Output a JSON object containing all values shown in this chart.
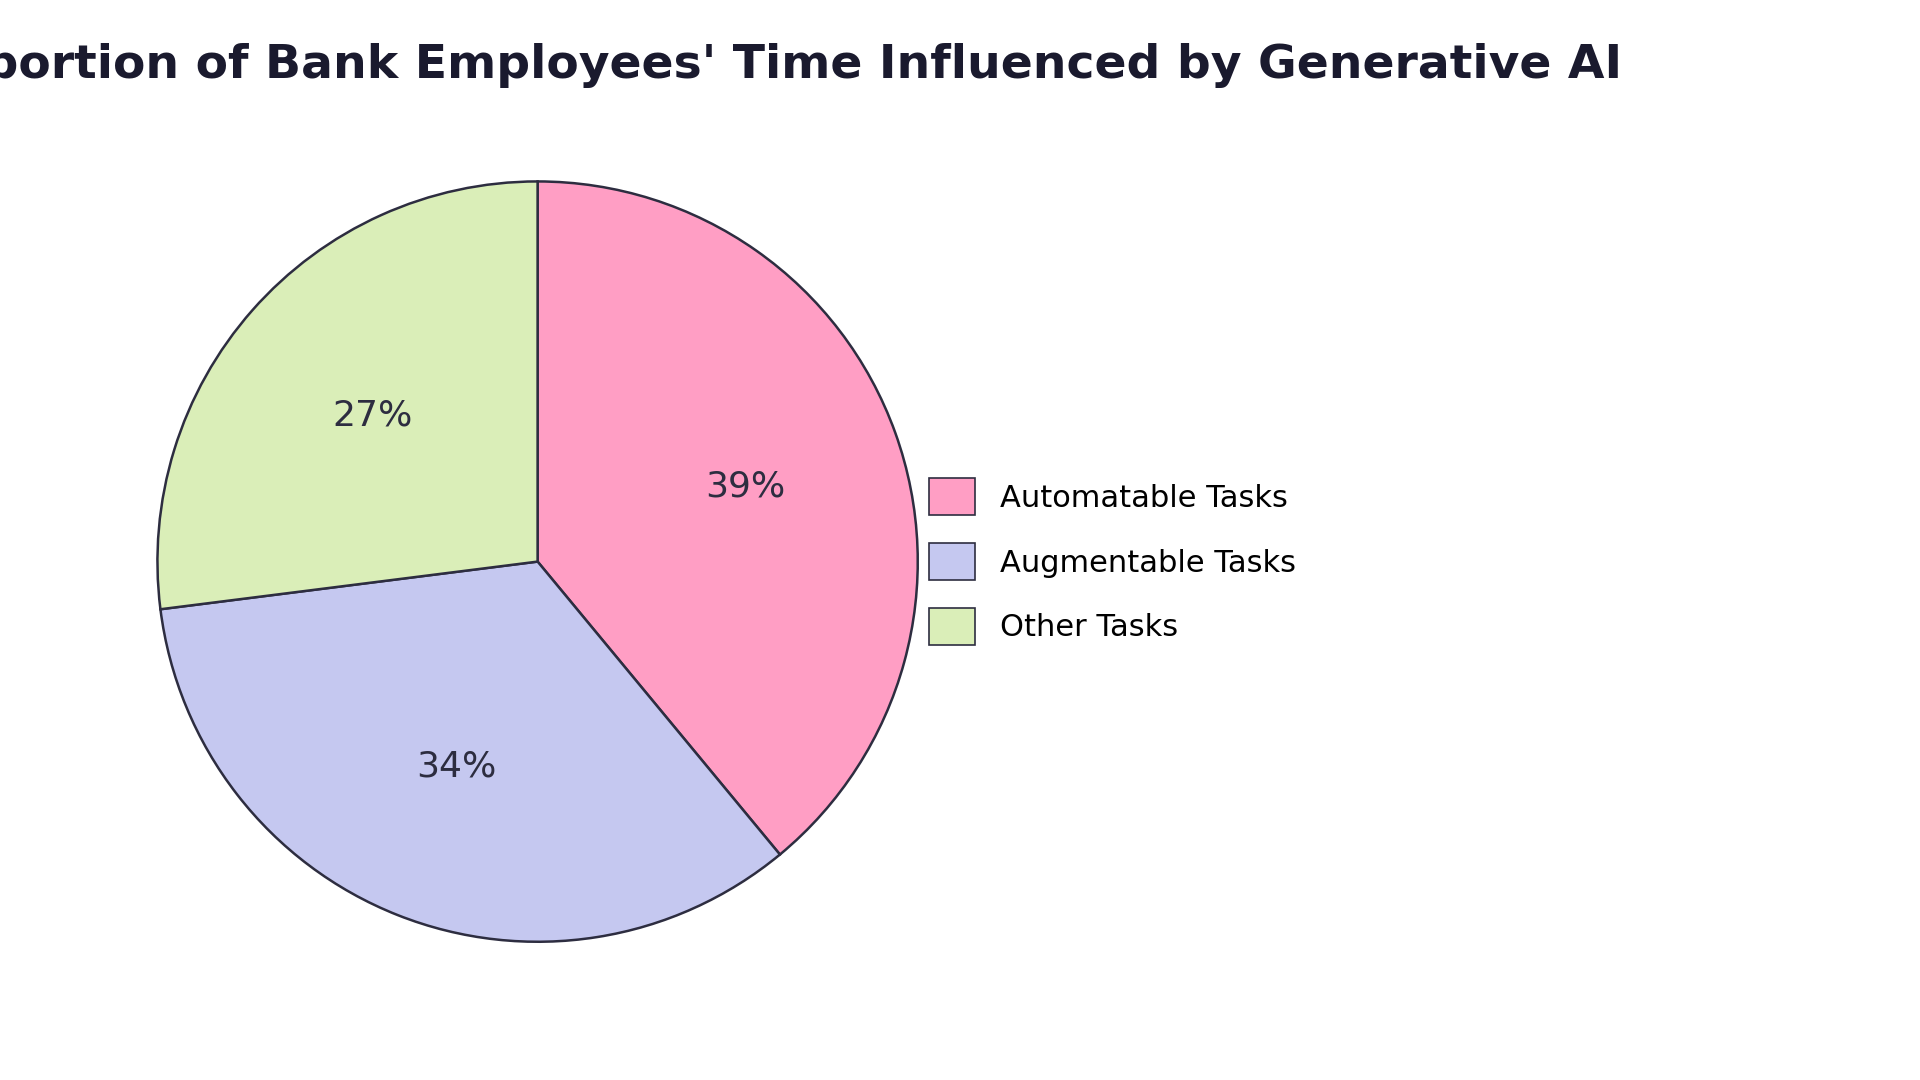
{
  "title": "Proportion of Bank Employees' Time Influenced by Generative AI",
  "labels": [
    "Automatable Tasks",
    "Augmentable Tasks",
    "Other Tasks"
  ],
  "values": [
    39,
    34,
    27
  ],
  "colors": [
    "#FF9EC4",
    "#C5C8F0",
    "#DAEEB8"
  ],
  "edge_color": "#2d2d40",
  "pct_labels": [
    "39%",
    "34%",
    "27%"
  ],
  "title_fontsize": 34,
  "pct_fontsize": 26,
  "legend_fontsize": 22,
  "background_color": "#ffffff",
  "startangle": 90
}
